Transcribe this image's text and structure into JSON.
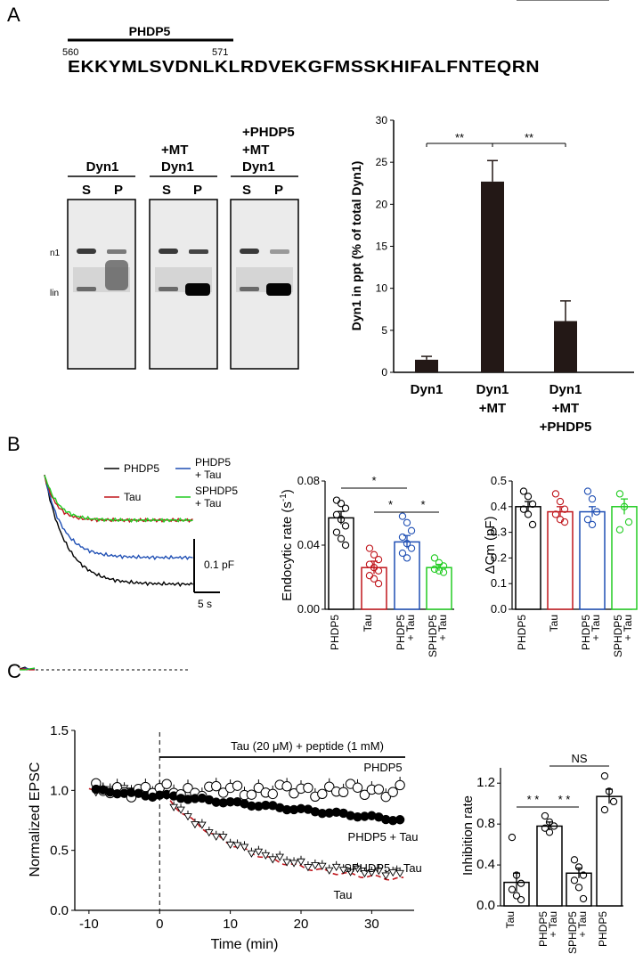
{
  "panels": {
    "a": "A",
    "b": "B",
    "c": "C"
  },
  "sequence": {
    "region_label": "PHDP5",
    "start": "560",
    "end": "571",
    "text": "EKKYMLSVDNLKLRDVEKGFMSSKHIFALFNTEQRN"
  },
  "blot": {
    "headers": [
      [
        "Dyn1"
      ],
      [
        "+MT",
        "Dyn1"
      ],
      [
        "+PHDP5",
        "+MT",
        "Dyn1"
      ]
    ],
    "lane_s": "S",
    "lane_p": "P",
    "side_top": "n1",
    "side_bottom": "lin"
  },
  "chart_data": [
    {
      "id": "A-bar",
      "type": "bar",
      "categories": [
        [
          "Dyn1"
        ],
        [
          "Dyn1",
          "+MT"
        ],
        [
          "Dyn1",
          "+MT",
          "+PHDP5"
        ]
      ],
      "values": [
        1.5,
        22.7,
        6.1
      ],
      "errors": [
        0.4,
        2.5,
        2.4
      ],
      "ylabel": "Dyn1 in ppt (% of total Dyn1)",
      "ylim": [
        0,
        30
      ],
      "yticks": [
        0,
        5,
        10,
        15,
        20,
        25,
        30
      ],
      "significance": [
        {
          "from": 0,
          "to": 1,
          "label": "**"
        },
        {
          "from": 1,
          "to": 2,
          "label": "**"
        }
      ]
    },
    {
      "id": "B-traces",
      "type": "line",
      "legend": [
        {
          "name": "PHDP5",
          "color": "#000000"
        },
        {
          "name": "PHDP5 + Tau",
          "color": "#1f4fb4"
        },
        {
          "name": "Tau",
          "color": "#c0161c"
        },
        {
          "name": "SPHDP5 + Tau",
          "color": "#22cc22"
        }
      ],
      "series": [
        {
          "name": "PHDP5",
          "color": "#000000",
          "plateau_pF": 0.205,
          "tau_s": 4.2
        },
        {
          "name": "PHDP5 + Tau",
          "color": "#1f4fb4",
          "plateau_pF": 0.155,
          "tau_s": 3.5
        },
        {
          "name": "Tau",
          "color": "#c0161c",
          "plateau_pF": 0.085,
          "tau_s": 2.2
        },
        {
          "name": "SPHDP5 + Tau",
          "color": "#22cc22",
          "plateau_pF": 0.085,
          "tau_s": 2.6
        }
      ],
      "scalebar_y": "0.1 pF",
      "scalebar_x": "5 s"
    },
    {
      "id": "B-endo",
      "type": "bar",
      "categories": [
        "PHDP5",
        "Tau",
        "PHDP5 + Tau",
        "SPHDP5 + Tau"
      ],
      "colors": [
        "#000000",
        "#c0161c",
        "#1f4fb4",
        "#22cc22"
      ],
      "values": [
        0.057,
        0.026,
        0.042,
        0.026
      ],
      "errors": [
        0.004,
        0.004,
        0.004,
        0.002
      ],
      "points": [
        [
          0.068,
          0.066,
          0.063,
          0.059,
          0.056,
          0.052,
          0.048,
          0.044,
          0.04
        ],
        [
          0.038,
          0.034,
          0.031,
          0.028,
          0.026,
          0.024,
          0.021,
          0.019,
          0.016
        ],
        [
          0.058,
          0.054,
          0.049,
          0.045,
          0.041,
          0.038,
          0.035,
          0.032
        ],
        [
          0.032,
          0.029,
          0.027,
          0.025,
          0.024,
          0.023
        ]
      ],
      "ylabel": "Endocytic rate (s",
      "ylabel_sup": "-1",
      "ylabel_end": ")",
      "ylim": [
        0,
        0.08
      ],
      "yticks": [
        "0.00",
        "0.04",
        "0.08"
      ],
      "significance": [
        {
          "from": 0,
          "to": 2,
          "label": "*"
        },
        {
          "from": 1,
          "to": 2,
          "label": "*"
        },
        {
          "from": 2,
          "to": 3,
          "label": "*"
        }
      ]
    },
    {
      "id": "B-dcm",
      "type": "bar",
      "categories": [
        "PHDP5",
        "Tau",
        "PHDP5 + Tau",
        "SPHDP5 + Tau"
      ],
      "colors": [
        "#000000",
        "#c0161c",
        "#1f4fb4",
        "#22cc22"
      ],
      "values": [
        0.4,
        0.38,
        0.38,
        0.4
      ],
      "errors": [
        0.02,
        0.02,
        0.02,
        0.03
      ],
      "points": [
        [
          0.46,
          0.44,
          0.41,
          0.39,
          0.37,
          0.33
        ],
        [
          0.45,
          0.42,
          0.39,
          0.37,
          0.35,
          0.34
        ],
        [
          0.46,
          0.43,
          0.38,
          0.35,
          0.33
        ],
        [
          0.45,
          0.4,
          0.34,
          0.31
        ]
      ],
      "ylabel": "ΔCm (pF)",
      "ylim": [
        0,
        0.5
      ],
      "yticks": [
        "0.0",
        "0.1",
        "0.2",
        "0.3",
        "0.4",
        "0.5"
      ]
    },
    {
      "id": "C-time",
      "type": "scatter",
      "xlabel": "Time (min)",
      "ylabel": "Normalized EPSC",
      "xlim": [
        -12,
        36
      ],
      "ylim": [
        0,
        1.5
      ],
      "xticks": [
        "-10",
        "0",
        "10",
        "20",
        "30"
      ],
      "yticks": [
        "0.0",
        "0.5",
        "1.0",
        "1.5"
      ],
      "treatment": "Tau (20 μM)  +  peptide (1 mM)",
      "series": [
        {
          "name": "PHDP5",
          "marker": "open-circle",
          "start": 1.0,
          "end": 1.0
        },
        {
          "name": "PHDP5 + Tau",
          "marker": "filled-circle",
          "start": 1.0,
          "end": 0.75
        },
        {
          "name": "SPHDP5 + Tau",
          "marker": "open-triangle",
          "start": 1.0,
          "end": 0.3
        },
        {
          "name": "Tau",
          "marker": "red-dashed-line",
          "start": 1.0,
          "end": 0.26
        }
      ]
    },
    {
      "id": "C-inhib",
      "type": "bar",
      "categories": [
        "Tau",
        "PHDP5 + Tau",
        "SPHDP5 + Tau",
        "PHDP5"
      ],
      "values": [
        0.23,
        0.78,
        0.32,
        1.07
      ],
      "errors": [
        0.09,
        0.04,
        0.05,
        0.07
      ],
      "points": [
        [
          0.67,
          0.3,
          0.22,
          0.16,
          0.1,
          0.06
        ],
        [
          0.88,
          0.82,
          0.78,
          0.76,
          0.72
        ],
        [
          0.45,
          0.38,
          0.3,
          0.25,
          0.18,
          0.07
        ],
        [
          1.27,
          1.12,
          1.02,
          0.94
        ]
      ],
      "ylabel": "Inhibition rate",
      "ylim": [
        0,
        1.35
      ],
      "yticks": [
        "0.0",
        "0.4",
        "0.8",
        "1.2"
      ],
      "significance": [
        {
          "from": 0,
          "to": 1,
          "label": "* *"
        },
        {
          "from": 1,
          "to": 2,
          "label": "* *"
        },
        {
          "from": 1,
          "to": 3,
          "label": "NS"
        }
      ]
    }
  ]
}
